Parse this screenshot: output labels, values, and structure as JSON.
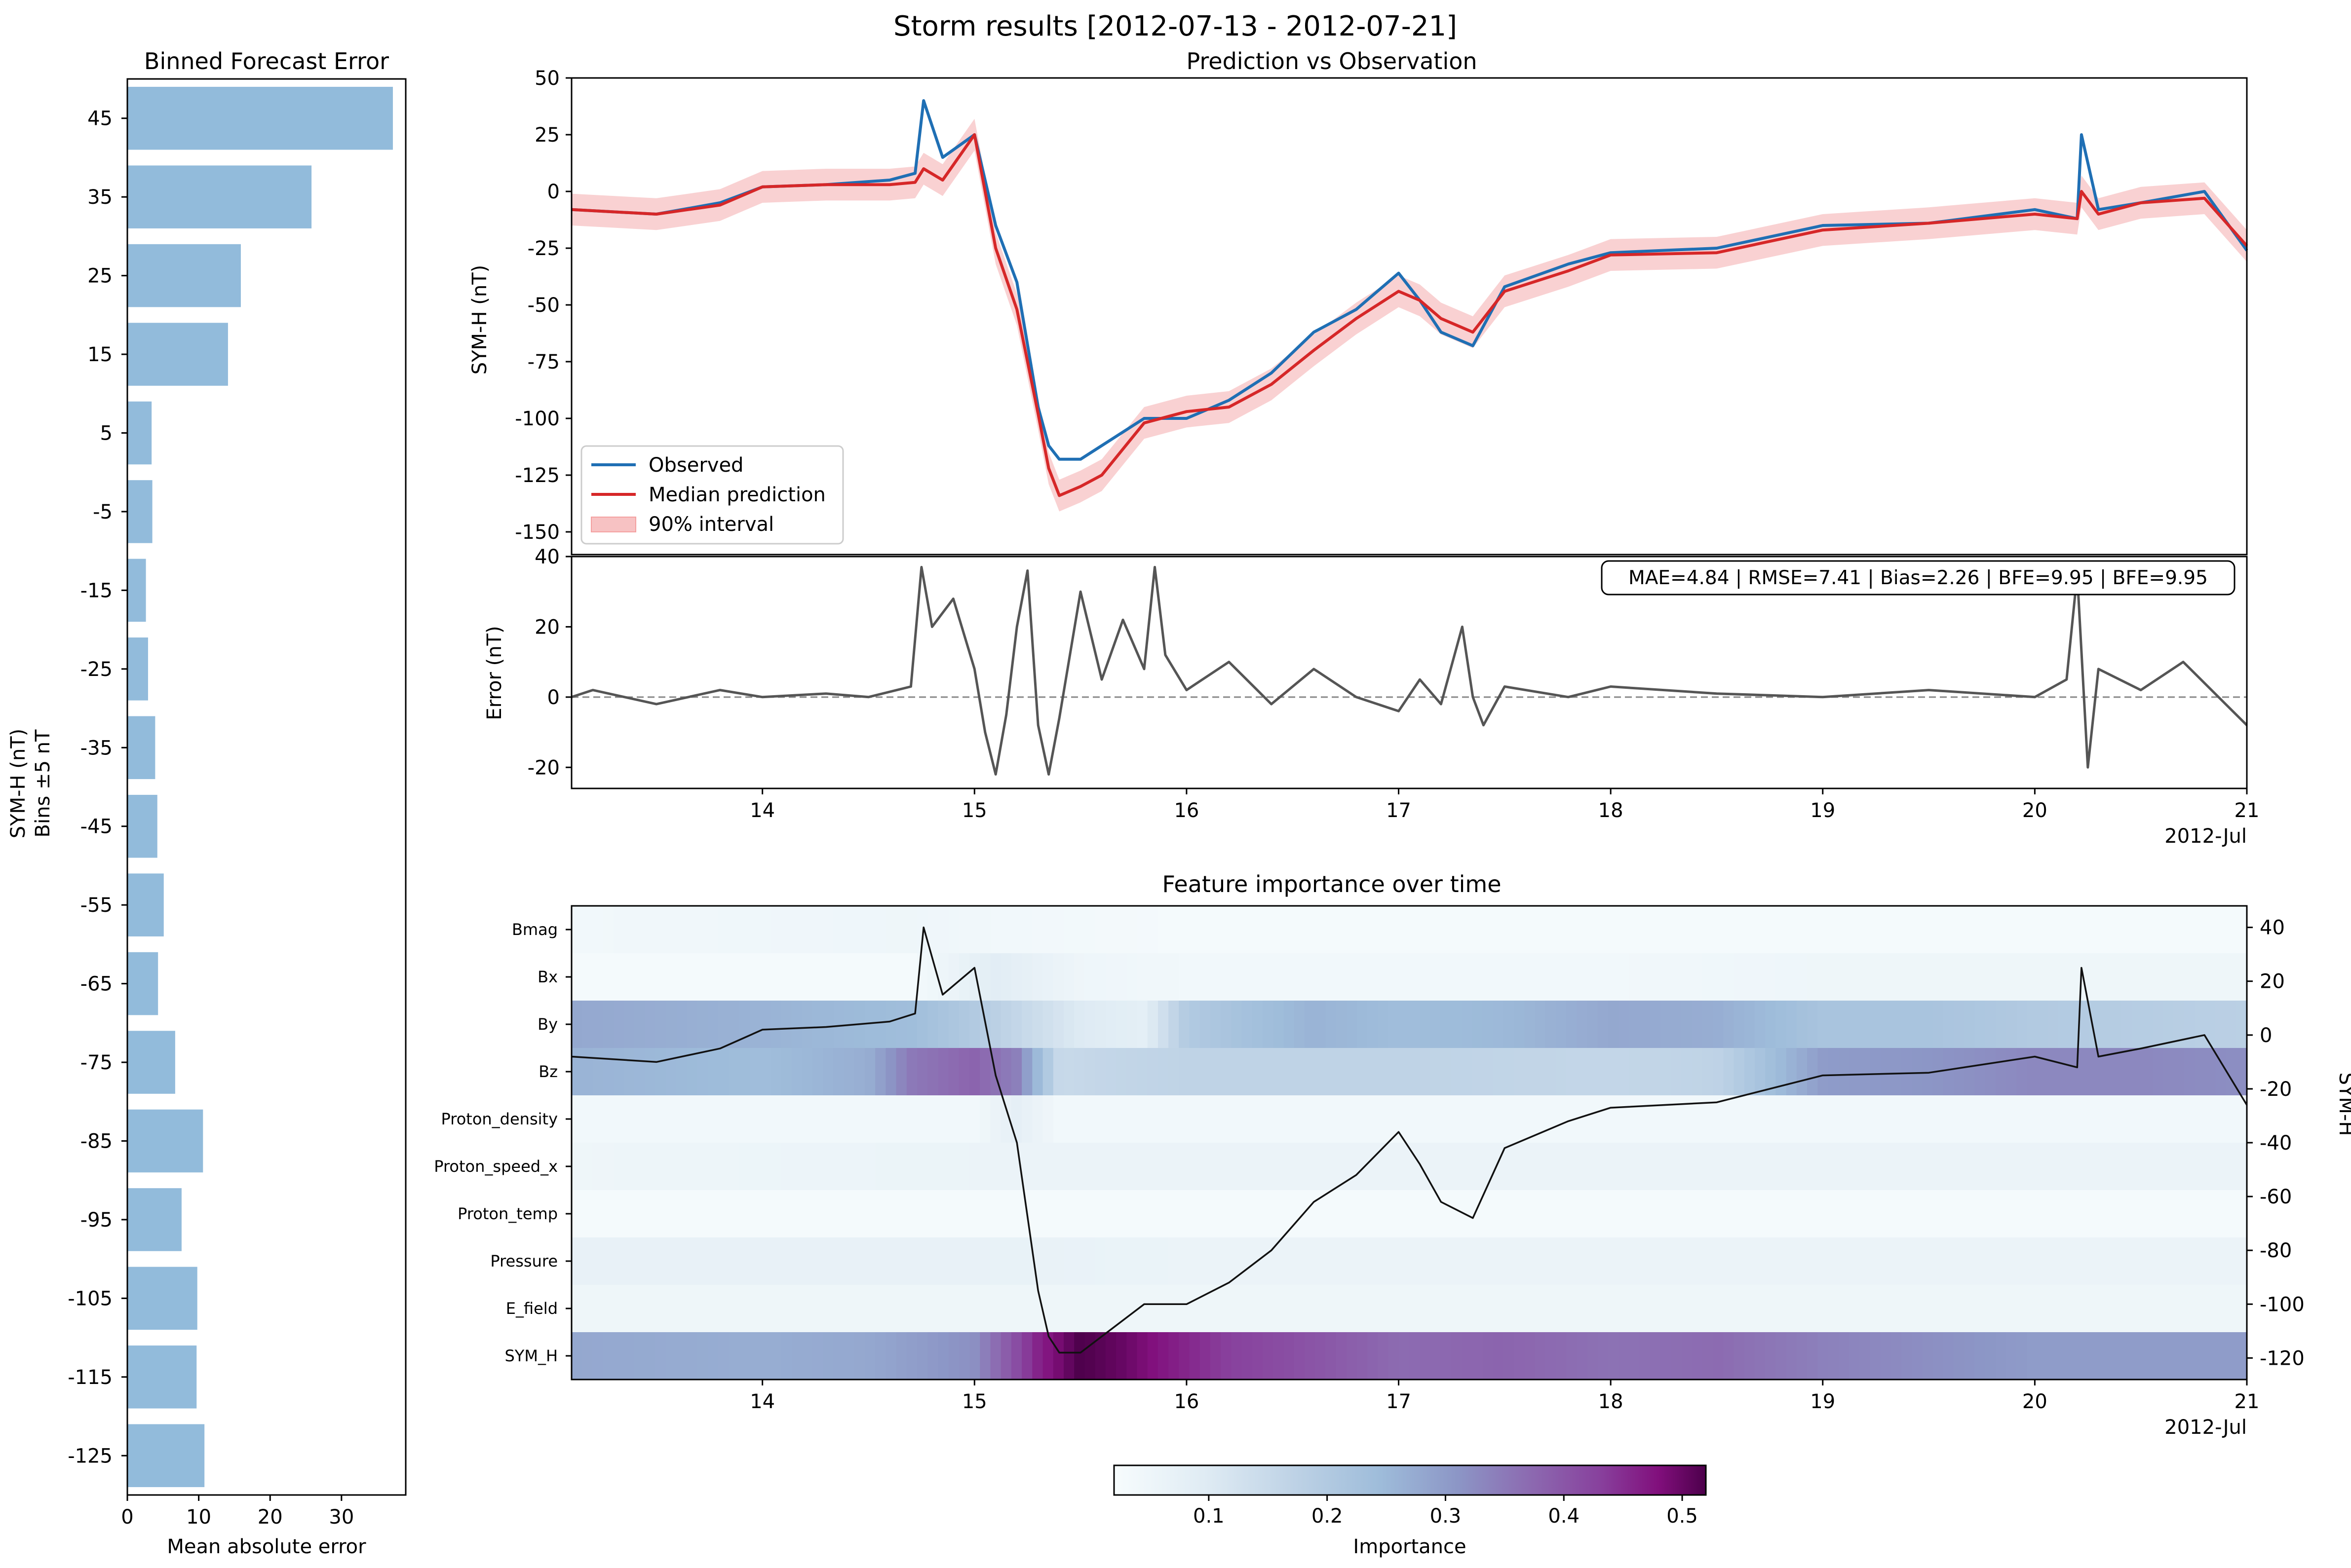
{
  "figure": {
    "title": "Storm results [2012-07-13 - 2012-07-21]"
  },
  "chart_data": [
    {
      "type": "bar",
      "orientation": "horizontal",
      "title": "Binned Forecast Error",
      "xlabel": "Mean absolute error",
      "ylabel": "SYM-H (nT)",
      "ylabel2": "Bins ±5 nT",
      "color": "#92bbdb",
      "xlim": [
        0,
        39
      ],
      "xticks": [
        0,
        10,
        20,
        30
      ],
      "categories": [
        "45",
        "35",
        "25",
        "15",
        "5",
        "-5",
        "-15",
        "-25",
        "-35",
        "-45",
        "-55",
        "-65",
        "-75",
        "-85",
        "-95",
        "-105",
        "-115",
        "-125"
      ],
      "values": [
        37.2,
        25.8,
        15.9,
        14.1,
        3.4,
        3.5,
        2.6,
        2.9,
        3.9,
        4.2,
        5.1,
        4.3,
        6.7,
        10.6,
        7.6,
        9.8,
        9.7,
        10.8
      ]
    },
    {
      "type": "line",
      "title": "Prediction vs Observation",
      "ylabel": "SYM-H (nT)",
      "ylim": [
        -160,
        50
      ],
      "yticks": [
        50,
        25,
        0,
        -25,
        -50,
        -75,
        -100,
        -125,
        -150
      ],
      "xlim": [
        13.1,
        21.0
      ],
      "legend": {
        "placement": "lower-left",
        "entries": [
          "Observed",
          "Median prediction",
          "90% interval"
        ]
      },
      "series": [
        {
          "name": "Observed",
          "color": "#1f6fb4",
          "x": [
            13.1,
            13.5,
            13.8,
            14.0,
            14.3,
            14.6,
            14.72,
            14.76,
            14.85,
            15.0,
            15.1,
            15.2,
            15.3,
            15.35,
            15.4,
            15.5,
            15.6,
            15.8,
            16.0,
            16.2,
            16.4,
            16.6,
            16.8,
            17.0,
            17.1,
            17.2,
            17.35,
            17.5,
            17.8,
            18.0,
            18.5,
            19.0,
            19.5,
            20.0,
            20.2,
            20.22,
            20.3,
            20.5,
            20.8,
            21.0
          ],
          "y": [
            -8,
            -10,
            -5,
            2,
            3,
            5,
            8,
            40,
            15,
            25,
            -15,
            -40,
            -95,
            -112,
            -118,
            -118,
            -112,
            -100,
            -100,
            -92,
            -80,
            -62,
            -52,
            -36,
            -48,
            -62,
            -68,
            -42,
            -32,
            -27,
            -25,
            -15,
            -14,
            -8,
            -12,
            25,
            -8,
            -5,
            0,
            -26
          ]
        },
        {
          "name": "Median prediction",
          "color": "#d62728",
          "x": [
            13.1,
            13.5,
            13.8,
            14.0,
            14.3,
            14.6,
            14.72,
            14.76,
            14.85,
            15.0,
            15.1,
            15.2,
            15.3,
            15.35,
            15.4,
            15.5,
            15.6,
            15.8,
            16.0,
            16.2,
            16.4,
            16.6,
            16.8,
            17.0,
            17.1,
            17.2,
            17.35,
            17.5,
            17.8,
            18.0,
            18.5,
            19.0,
            19.5,
            20.0,
            20.2,
            20.22,
            20.3,
            20.5,
            20.8,
            21.0
          ],
          "y": [
            -8,
            -10,
            -6,
            2,
            3,
            3,
            4,
            10,
            5,
            25,
            -25,
            -52,
            -98,
            -122,
            -134,
            -130,
            -125,
            -102,
            -97,
            -95,
            -85,
            -70,
            -56,
            -44,
            -48,
            -56,
            -62,
            -44,
            -35,
            -28,
            -27,
            -17,
            -14,
            -10,
            -12,
            0,
            -10,
            -5,
            -3,
            -24
          ]
        }
      ],
      "interval": {
        "name": "90% interval",
        "color": "#f7c2c3",
        "halfwidth": 7
      }
    },
    {
      "type": "line",
      "ylabel": "Error (nT)",
      "ylim": [
        -26,
        40
      ],
      "yticks": [
        40,
        20,
        0,
        -20
      ],
      "xlim": [
        13.1,
        21.0
      ],
      "xticks": [
        "14",
        "15",
        "16",
        "17",
        "18",
        "19",
        "20",
        "21"
      ],
      "xtick_values": [
        14,
        15,
        16,
        17,
        18,
        19,
        20,
        21
      ],
      "xaxis_note": "2012-Jul",
      "zero_line": true,
      "annotation": "MAE=4.84 | RMSE=7.41 | Bias=2.26 | BFE=9.95 | BFE=9.95",
      "series": [
        {
          "name": "Error",
          "color": "#555555",
          "x": [
            13.1,
            13.2,
            13.5,
            13.8,
            14.0,
            14.3,
            14.5,
            14.7,
            14.75,
            14.8,
            14.9,
            15.0,
            15.05,
            15.1,
            15.15,
            15.2,
            15.25,
            15.3,
            15.35,
            15.4,
            15.5,
            15.6,
            15.7,
            15.8,
            15.85,
            15.9,
            16.0,
            16.2,
            16.4,
            16.6,
            16.8,
            17.0,
            17.1,
            17.2,
            17.3,
            17.35,
            17.4,
            17.5,
            17.8,
            18.0,
            18.5,
            19.0,
            19.5,
            20.0,
            20.15,
            20.2,
            20.25,
            20.3,
            20.5,
            20.7,
            20.9,
            21.0
          ],
          "y": [
            0,
            2,
            -2,
            2,
            0,
            1,
            0,
            3,
            37,
            20,
            28,
            8,
            -10,
            -22,
            -5,
            20,
            36,
            -8,
            -22,
            -6,
            30,
            5,
            22,
            8,
            37,
            12,
            2,
            10,
            -2,
            8,
            0,
            -4,
            5,
            -2,
            20,
            0,
            -8,
            3,
            0,
            3,
            1,
            0,
            2,
            0,
            5,
            35,
            -20,
            8,
            2,
            10,
            -2,
            -8
          ]
        }
      ]
    },
    {
      "type": "heatmap",
      "title": "Feature importance over time",
      "rows": [
        "Bmag",
        "Bx",
        "By",
        "Bz",
        "Proton_density",
        "Proton_speed_x",
        "Proton_temp",
        "Pressure",
        "E_field",
        "SYM_H"
      ],
      "xlim": [
        13.1,
        21.0
      ],
      "xticks": [
        "14",
        "15",
        "16",
        "17",
        "18",
        "19",
        "20",
        "21"
      ],
      "xtick_values": [
        14,
        15,
        16,
        17,
        18,
        19,
        20,
        21
      ],
      "xaxis_note": "2012-Jul",
      "colorbar": {
        "label": "Importance",
        "range": [
          0.02,
          0.52
        ],
        "ticks": [
          "0.1",
          "0.2",
          "0.3",
          "0.4",
          "0.5"
        ],
        "tick_values": [
          0.1,
          0.2,
          0.3,
          0.4,
          0.5
        ],
        "colormap": "BuPu"
      },
      "importance": [
        {
          "row": "Bmag",
          "x": [
            13.1,
            14.7,
            15.1,
            16,
            17,
            18,
            19,
            20,
            21
          ],
          "v": [
            0.04,
            0.05,
            0.04,
            0.03,
            0.03,
            0.03,
            0.03,
            0.03,
            0.03
          ]
        },
        {
          "row": "Bx",
          "x": [
            13.1,
            14.7,
            15.1,
            15.5,
            16,
            17,
            18,
            19,
            20,
            21
          ],
          "v": [
            0.03,
            0.03,
            0.09,
            0.05,
            0.04,
            0.04,
            0.04,
            0.05,
            0.05,
            0.05
          ]
        },
        {
          "row": "By",
          "x": [
            13.1,
            14,
            14.7,
            15,
            15.3,
            15.5,
            15.8,
            16,
            16.6,
            17,
            17.5,
            18,
            18.5,
            19,
            19.5,
            20,
            20.5,
            21
          ],
          "v": [
            0.28,
            0.26,
            0.24,
            0.2,
            0.14,
            0.1,
            0.08,
            0.2,
            0.26,
            0.24,
            0.25,
            0.28,
            0.27,
            0.22,
            0.22,
            0.2,
            0.19,
            0.18
          ]
        },
        {
          "row": "Bz",
          "x": [
            13.1,
            14,
            14.5,
            14.7,
            15.0,
            15.2,
            15.4,
            15.6,
            16,
            17,
            18,
            18.5,
            19,
            19.5,
            20,
            20.5,
            21
          ],
          "v": [
            0.26,
            0.24,
            0.27,
            0.35,
            0.38,
            0.34,
            0.15,
            0.16,
            0.17,
            0.17,
            0.16,
            0.17,
            0.3,
            0.31,
            0.33,
            0.33,
            0.32
          ]
        },
        {
          "row": "Proton_density",
          "x": [
            13.1,
            15,
            15.2,
            15.4,
            16,
            17,
            18,
            19,
            20,
            21
          ],
          "v": [
            0.04,
            0.04,
            0.08,
            0.04,
            0.04,
            0.04,
            0.04,
            0.04,
            0.04,
            0.04
          ]
        },
        {
          "row": "Proton_speed_x",
          "x": [
            13.1,
            15,
            16,
            17,
            18,
            19,
            20,
            21
          ],
          "v": [
            0.05,
            0.06,
            0.06,
            0.06,
            0.06,
            0.06,
            0.06,
            0.06
          ]
        },
        {
          "row": "Proton_temp",
          "x": [
            13.1,
            15,
            16,
            17,
            18,
            19,
            20,
            21
          ],
          "v": [
            0.03,
            0.03,
            0.03,
            0.03,
            0.03,
            0.03,
            0.03,
            0.03
          ]
        },
        {
          "row": "Pressure",
          "x": [
            13.1,
            15,
            16,
            17,
            18,
            19,
            20,
            21
          ],
          "v": [
            0.07,
            0.07,
            0.06,
            0.06,
            0.06,
            0.06,
            0.06,
            0.06
          ]
        },
        {
          "row": "E_field",
          "x": [
            13.1,
            15,
            16,
            17,
            18,
            19,
            20,
            21
          ],
          "v": [
            0.05,
            0.05,
            0.05,
            0.05,
            0.05,
            0.05,
            0.05,
            0.05
          ]
        },
        {
          "row": "SYM_H",
          "x": [
            13.1,
            14,
            14.5,
            15.0,
            15.3,
            15.5,
            15.7,
            15.9,
            16.2,
            16.5,
            17,
            17.5,
            18,
            18.5,
            19,
            19.5,
            20,
            20.5,
            21
          ],
          "v": [
            0.28,
            0.27,
            0.28,
            0.32,
            0.46,
            0.52,
            0.5,
            0.47,
            0.43,
            0.41,
            0.37,
            0.38,
            0.36,
            0.37,
            0.34,
            0.32,
            0.3,
            0.3,
            0.3
          ]
        }
      ],
      "overlay": {
        "name": "SYM-H",
        "axis_label": "SYM-H",
        "color": "#111111",
        "ylim": [
          -128,
          48
        ],
        "yticks": [
          40,
          20,
          0,
          -20,
          -40,
          -60,
          -80,
          -100,
          -120
        ],
        "x": [
          13.1,
          13.5,
          13.8,
          14.0,
          14.3,
          14.6,
          14.72,
          14.76,
          14.85,
          15.0,
          15.1,
          15.2,
          15.3,
          15.35,
          15.4,
          15.5,
          15.6,
          15.8,
          16.0,
          16.2,
          16.4,
          16.6,
          16.8,
          17.0,
          17.1,
          17.2,
          17.35,
          17.5,
          17.8,
          18.0,
          18.5,
          19.0,
          19.5,
          20.0,
          20.2,
          20.22,
          20.3,
          20.5,
          20.8,
          21.0
        ],
        "y": [
          -8,
          -10,
          -5,
          2,
          3,
          5,
          8,
          40,
          15,
          25,
          -15,
          -40,
          -95,
          -112,
          -118,
          -118,
          -112,
          -100,
          -100,
          -92,
          -80,
          -62,
          -52,
          -36,
          -48,
          -62,
          -68,
          -42,
          -32,
          -27,
          -25,
          -15,
          -14,
          -8,
          -12,
          25,
          -8,
          -5,
          0,
          -26
        ]
      }
    }
  ]
}
